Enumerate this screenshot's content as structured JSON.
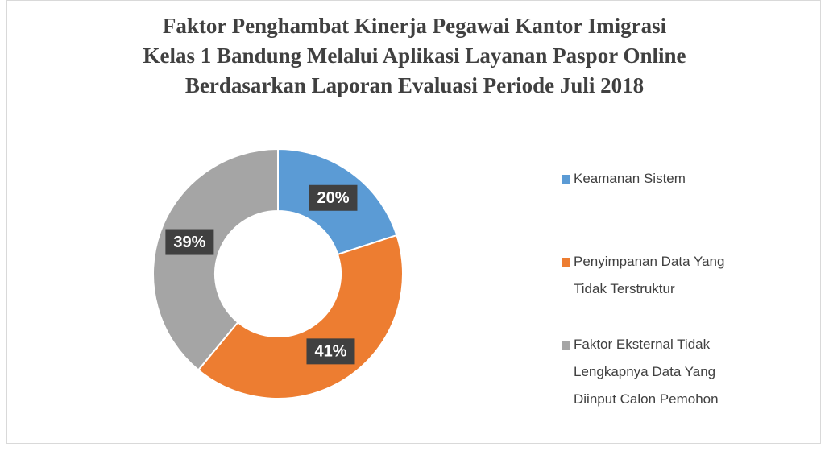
{
  "chart_data": {
    "type": "pie",
    "title": "Faktor Penghambat Kinerja Pegawai Kantor Imigrasi\nKelas 1 Bandung Melalui Aplikasi Layanan Paspor Online\nBerdasarkan Laporan Evaluasi Periode Juli 2018",
    "categories": [
      "Keamanan Sistem",
      "Penyimpanan Data Yang Tidak Terstruktur",
      "Faktor Eksternal Tidak Lengkapnya Data Yang Diinput Calon Pemohon"
    ],
    "values": [
      20,
      41,
      39
    ],
    "value_labels": [
      "20%",
      "41%",
      "39%"
    ],
    "colors": [
      "#5b9bd5",
      "#ed7d31",
      "#a5a5a5"
    ],
    "donut": true,
    "legend": "right"
  }
}
